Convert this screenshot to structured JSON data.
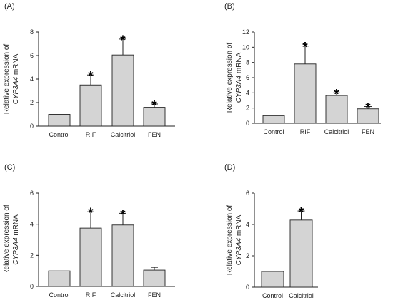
{
  "chart_data": [
    {
      "type": "bar",
      "panel_label": "(A)",
      "ylabel_line1": "Relative expression of",
      "ylabel_gene": "CYP3A4",
      "ylabel_suffix": " mRNA",
      "ylim": [
        0,
        8
      ],
      "yticks": [
        "0",
        "2",
        "4",
        "6",
        "8"
      ],
      "categories": [
        "Control",
        "RIF",
        "Calcitriol",
        "FEN"
      ],
      "values": [
        1.0,
        3.5,
        6.05,
        1.6
      ],
      "errors": [
        0,
        0.85,
        1.35,
        0.28
      ],
      "significant": [
        false,
        true,
        true,
        true
      ],
      "marker": "*"
    },
    {
      "type": "bar",
      "panel_label": "(B)",
      "ylabel_line1": "Relative expression of",
      "ylabel_gene": "CYP3A4",
      "ylabel_suffix": " mRNA",
      "ylim": [
        0,
        12
      ],
      "yticks": [
        "0",
        "2",
        "4",
        "6",
        "8",
        "10",
        "12"
      ],
      "categories": [
        "Control",
        "RIF",
        "Calcitriol",
        "FEN"
      ],
      "values": [
        1.0,
        7.8,
        3.65,
        1.9
      ],
      "errors": [
        0,
        2.35,
        0.35,
        0.3
      ],
      "significant": [
        false,
        true,
        true,
        true
      ],
      "marker": "*"
    },
    {
      "type": "bar",
      "panel_label": "(C)",
      "ylabel_line1": "Relative expression of",
      "ylabel_gene": "CYP3A4",
      "ylabel_suffix": " mRNA",
      "ylim": [
        0,
        6
      ],
      "yticks": [
        "0",
        "2",
        "4",
        "6"
      ],
      "categories": [
        "Control",
        "RIF",
        "Calcitriol",
        "FEN"
      ],
      "values": [
        1.0,
        3.75,
        3.95,
        1.05
      ],
      "errors": [
        0,
        1.05,
        0.75,
        0.18
      ],
      "significant": [
        false,
        true,
        true,
        false
      ],
      "marker": "*"
    },
    {
      "type": "bar",
      "panel_label": "(D)",
      "ylabel_line1": "Relative expression of",
      "ylabel_gene": "CYP3A4",
      "ylabel_suffix": " mRNA",
      "ylim": [
        0,
        6
      ],
      "yticks": [
        "0",
        "2",
        "4",
        "6"
      ],
      "categories": [
        "Control",
        "Calcitriol"
      ],
      "values": [
        1.0,
        4.28
      ],
      "errors": [
        0,
        0.58
      ],
      "significant": [
        false,
        true
      ],
      "marker": "*"
    }
  ]
}
